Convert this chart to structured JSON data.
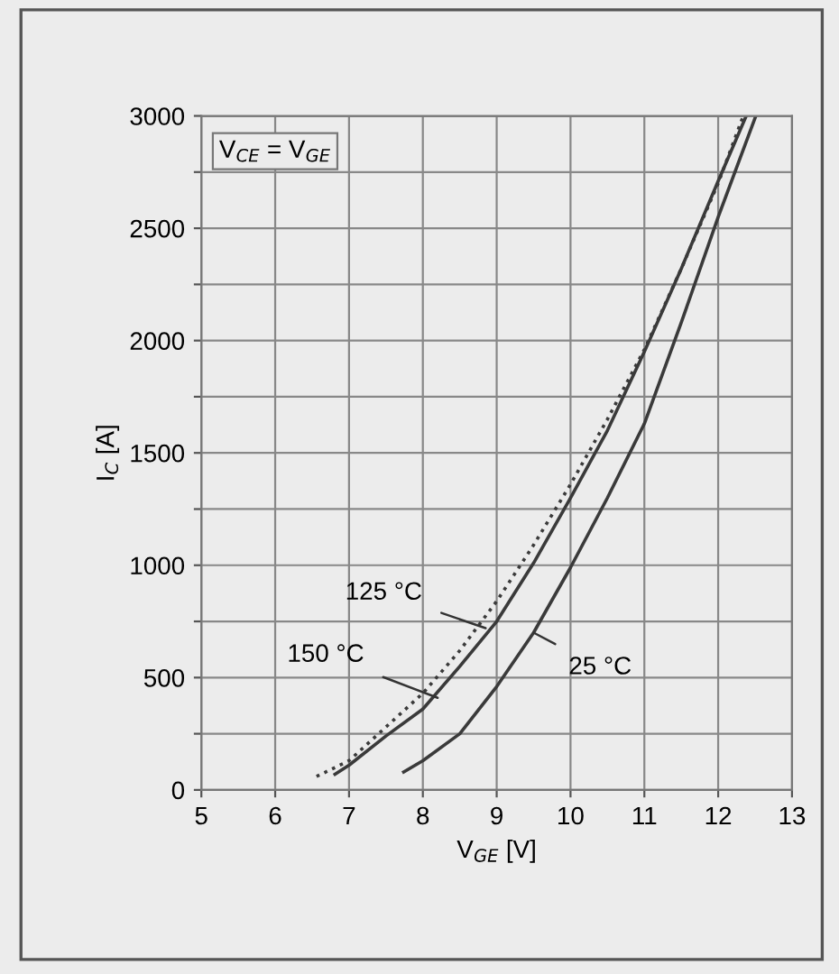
{
  "chart_data": {
    "type": "line",
    "xlabel": "V$_{GE}$ [V]",
    "ylabel": "I$_{C}$ [A]",
    "xlim": [
      5,
      13
    ],
    "xticks": [
      5,
      6,
      7,
      8,
      9,
      10,
      11,
      12,
      13
    ],
    "ylim": [
      0,
      3000
    ],
    "yticks": [
      0,
      {
        "value": 250,
        "label": null
      },
      500,
      {
        "value": 750,
        "label": null
      },
      1000,
      {
        "value": 1250,
        "label": null
      },
      1500,
      {
        "value": 1750,
        "label": null
      },
      2000,
      {
        "value": 2250,
        "label": null
      },
      2500,
      {
        "value": 2750,
        "label": null
      },
      3000
    ],
    "grid": true,
    "legend": false,
    "marker": "none",
    "series": [
      {
        "color": "#3a3a3a",
        "line_style": "solid",
        "x": [
          7.74,
          8.0,
          8.5,
          9.0,
          9.5,
          10.0,
          10.5,
          11.0,
          11.5,
          12.0,
          12.51
        ],
        "values": [
          80,
          130,
          250,
          460,
          700,
          990,
          1300,
          1630,
          2080,
          2550,
          3000
        ]
      },
      {
        "color": "#3a3a3a",
        "line_style": "solid",
        "x": [
          6.81,
          7.0,
          7.5,
          8.0,
          8.5,
          9.0,
          9.5,
          10.0,
          10.5,
          11.0,
          11.5,
          12.0,
          12.38
        ],
        "values": [
          70,
          110,
          240,
          360,
          550,
          750,
          1010,
          1300,
          1600,
          1950,
          2320,
          2710,
          3000
        ]
      },
      {
        "color": "#3a3a3a",
        "line_style": "dotted",
        "x": [
          6.56,
          7.0,
          7.5,
          8.0,
          8.5,
          9.0,
          9.5,
          10.0,
          10.5,
          11.0,
          11.5,
          12.0,
          12.34
        ],
        "values": [
          60,
          130,
          280,
          430,
          620,
          840,
          1090,
          1360,
          1650,
          1960,
          2320,
          2700,
          3000
        ]
      }
    ],
    "annotations": [
      "V$_{CE}$ = V$_{GE}$",
      {
        "text": "125 °C",
        "x": 8.85,
        "y": 720
      },
      {
        "text": "150 °C",
        "x": 8.2,
        "y": 410
      },
      {
        "text": "25 °C",
        "x": 9.5,
        "y": 700
      }
    ]
  }
}
